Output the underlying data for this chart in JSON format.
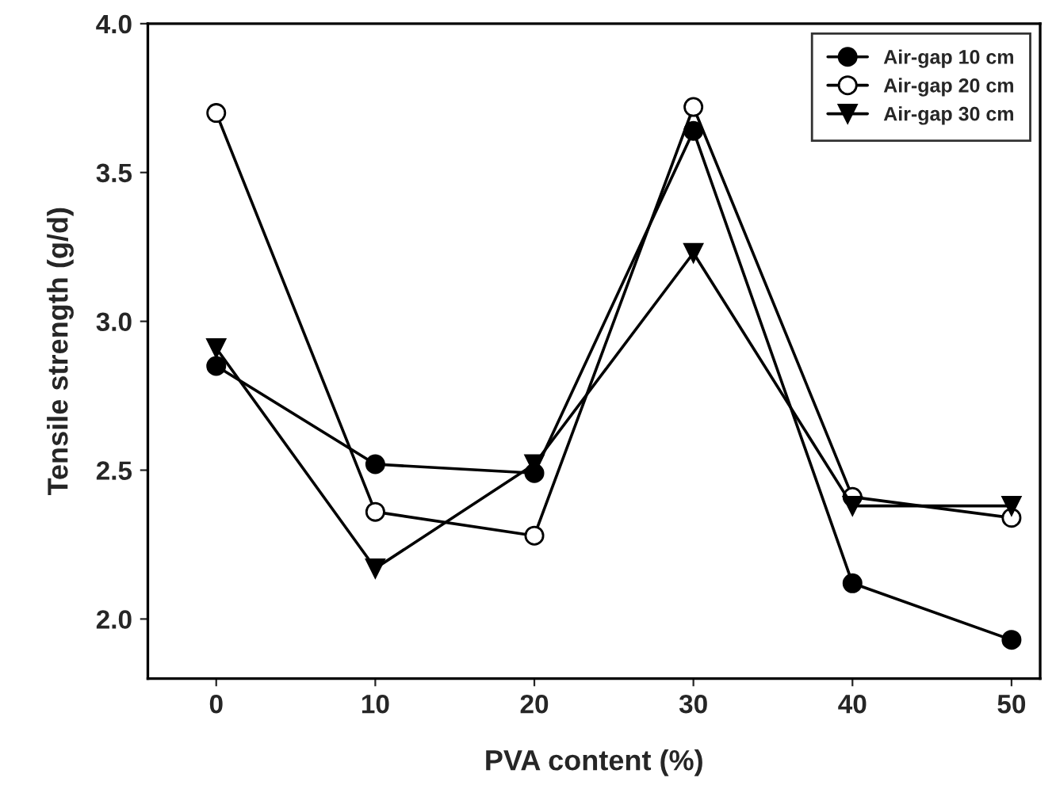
{
  "chart_data": {
    "type": "line",
    "xlabel": "PVA content (%)",
    "ylabel": "Tensile strength (g/d)",
    "x": [
      0,
      10,
      20,
      30,
      40,
      50
    ],
    "series": [
      {
        "name": "Air-gap 10 cm",
        "color": "#000000",
        "marker": "circle",
        "values": [
          2.85,
          2.52,
          2.49,
          3.64,
          2.12,
          1.93
        ]
      },
      {
        "name": "Air-gap 20 cm",
        "color": "#000000",
        "marker": "circle",
        "values": [
          3.7,
          2.36,
          2.28,
          3.72,
          2.41,
          2.34
        ]
      },
      {
        "name": "Air-gap 30 cm",
        "color": "#000000",
        "marker": "triangle",
        "values": [
          2.91,
          2.17,
          2.52,
          3.23,
          2.38,
          2.38
        ]
      }
    ],
    "xlim": [
      -4.3,
      51.8
    ],
    "xticks": [
      0,
      10,
      20,
      30,
      40,
      50
    ],
    "ylim": [
      1.8,
      4.0
    ],
    "yticks": [
      {
        "value": 2.0,
        "label": "2.0"
      },
      {
        "value": 2.5,
        "label": "2.5"
      },
      {
        "value": 3.0,
        "label": "3.0"
      },
      {
        "value": 3.5,
        "label": "3.5"
      },
      {
        "value": 4.0,
        "label": "4.0"
      }
    ],
    "grid": false,
    "legend": "top right",
    "line_style": "solid"
  }
}
